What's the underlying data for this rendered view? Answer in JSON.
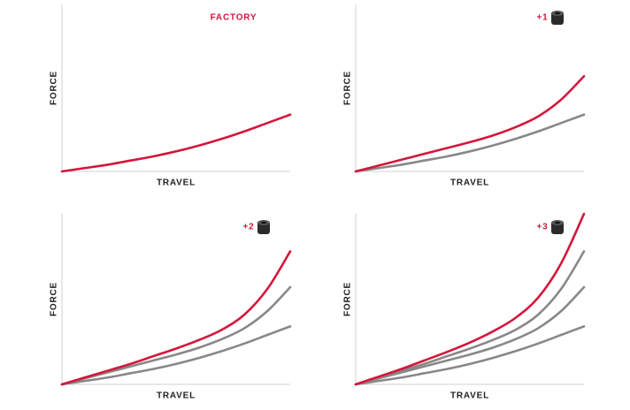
{
  "chart_data": [
    {
      "type": "line",
      "title": "FACTORY",
      "xlabel": "TRAVEL",
      "ylabel": "FORCE",
      "token_icon": false,
      "x": [
        0,
        10,
        20,
        30,
        40,
        50,
        60,
        70,
        80,
        90,
        100
      ],
      "xlim": [
        0,
        100
      ],
      "ylim": [
        0,
        100
      ],
      "series": [
        {
          "color": "#d4163c",
          "values": [
            0,
            2,
            4,
            6.5,
            9,
            12,
            15.5,
            19.5,
            24,
            29,
            34
          ]
        }
      ]
    },
    {
      "type": "line",
      "title": "+1",
      "xlabel": "TRAVEL",
      "ylabel": "FORCE",
      "token_icon": true,
      "x": [
        0,
        10,
        20,
        30,
        40,
        50,
        60,
        70,
        80,
        90,
        100
      ],
      "xlim": [
        0,
        100
      ],
      "ylim": [
        0,
        100
      ],
      "series": [
        {
          "color": "#888888",
          "values": [
            0,
            2,
            4,
            6.5,
            9,
            12,
            15.5,
            19.5,
            24,
            29,
            34
          ]
        },
        {
          "color": "#d4163c",
          "values": [
            0,
            3.5,
            7,
            10.5,
            14,
            17.5,
            21.5,
            26.5,
            33,
            43,
            57
          ]
        }
      ]
    },
    {
      "type": "line",
      "title": "+2",
      "xlabel": "TRAVEL",
      "ylabel": "FORCE",
      "token_icon": true,
      "x": [
        0,
        10,
        20,
        30,
        40,
        50,
        60,
        70,
        80,
        90,
        100
      ],
      "xlim": [
        0,
        100
      ],
      "ylim": [
        0,
        100
      ],
      "series": [
        {
          "color": "#888888",
          "values": [
            0,
            2,
            4,
            6.5,
            9,
            12,
            15.5,
            19.5,
            24,
            29,
            34
          ]
        },
        {
          "color": "#888888",
          "values": [
            0,
            3.5,
            7,
            10.5,
            14,
            17.5,
            21.5,
            26.5,
            33,
            43,
            57
          ]
        },
        {
          "color": "#d4163c",
          "values": [
            0,
            4,
            8,
            12,
            16.5,
            21,
            26,
            32,
            41,
            56,
            78
          ]
        }
      ]
    },
    {
      "type": "line",
      "title": "+3",
      "xlabel": "TRAVEL",
      "ylabel": "FORCE",
      "token_icon": true,
      "x": [
        0,
        10,
        20,
        30,
        40,
        50,
        60,
        70,
        80,
        90,
        100
      ],
      "xlim": [
        0,
        100
      ],
      "ylim": [
        0,
        100
      ],
      "series": [
        {
          "color": "#888888",
          "values": [
            0,
            2,
            4,
            6.5,
            9,
            12,
            15.5,
            19.5,
            24,
            29,
            34
          ]
        },
        {
          "color": "#888888",
          "values": [
            0,
            3.5,
            7,
            10.5,
            14,
            17.5,
            21.5,
            26.5,
            33,
            43,
            57
          ]
        },
        {
          "color": "#888888",
          "values": [
            0,
            4,
            8,
            12,
            16.5,
            21,
            26,
            32,
            41,
            56,
            78
          ]
        },
        {
          "color": "#d4163c",
          "values": [
            0,
            4.5,
            9,
            14,
            19,
            24.5,
            31,
            39,
            51,
            71,
            100
          ]
        }
      ]
    }
  ]
}
